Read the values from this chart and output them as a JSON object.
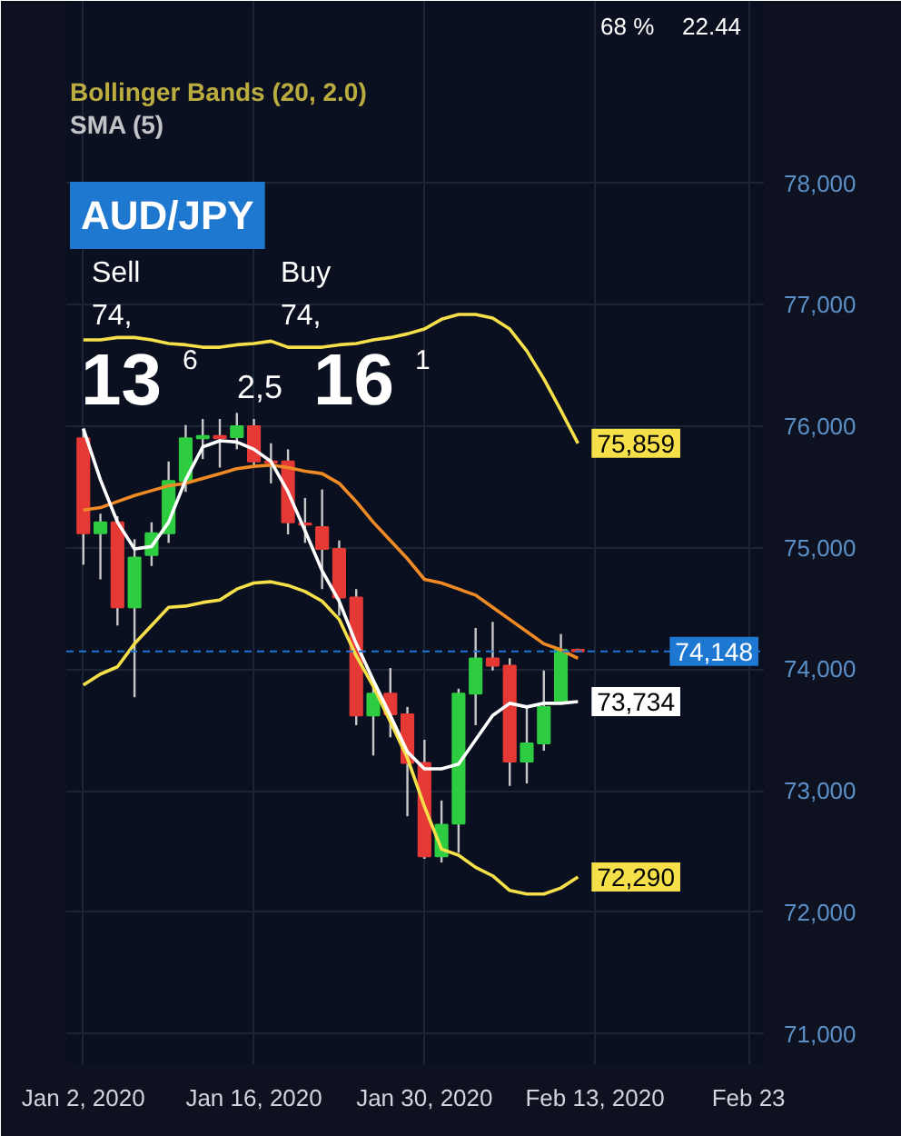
{
  "chart_data": {
    "type": "candlestick",
    "title": "AUD/JPY",
    "categories": [
      "Jan 2, 2020",
      null,
      null,
      null,
      null,
      null,
      null,
      null,
      null,
      null,
      "Jan 16, 2020",
      null,
      null,
      null,
      null,
      null,
      null,
      null,
      null,
      null,
      "Jan 30, 2020",
      null,
      null,
      null,
      null,
      null,
      null,
      null,
      null,
      null,
      "Feb 13, 2020",
      null,
      null,
      null,
      null,
      null,
      null,
      null,
      null,
      "Feb 23"
    ],
    "ohlc": [
      [
        75900,
        75980,
        74860,
        75120
      ],
      [
        75120,
        75280,
        74740,
        75210
      ],
      [
        75210,
        75260,
        74360,
        74510
      ],
      [
        74510,
        75070,
        73770,
        74920
      ],
      [
        74940,
        75210,
        74850,
        75120
      ],
      [
        75120,
        75710,
        75040,
        75550
      ],
      [
        75550,
        76010,
        75460,
        75900
      ],
      [
        75900,
        76060,
        75730,
        75920
      ],
      [
        75920,
        76060,
        75660,
        75900
      ],
      [
        75910,
        76110,
        75810,
        76000
      ],
      [
        76000,
        76060,
        75680,
        75710
      ],
      [
        75710,
        75860,
        75530,
        75700
      ],
      [
        75710,
        75810,
        75110,
        75210
      ],
      [
        75200,
        75410,
        75040,
        75190
      ],
      [
        75170,
        75480,
        74660,
        74990
      ],
      [
        74990,
        75060,
        74440,
        74590
      ],
      [
        74590,
        74660,
        73540,
        73620
      ],
      [
        73620,
        73860,
        73290,
        73800
      ],
      [
        73800,
        74010,
        73440,
        73630
      ],
      [
        73630,
        73690,
        72790,
        73230
      ],
      [
        73230,
        73420,
        72440,
        72460
      ],
      [
        72460,
        72920,
        72410,
        72720
      ],
      [
        72730,
        73840,
        72490,
        73800
      ],
      [
        73800,
        74340,
        73540,
        74090
      ],
      [
        74090,
        74390,
        73990,
        74030
      ],
      [
        74030,
        74090,
        73040,
        73240
      ],
      [
        73240,
        73690,
        73060,
        73390
      ],
      [
        73390,
        73990,
        73330,
        73690
      ],
      [
        73720,
        74290,
        73720,
        74160
      ],
      [
        74160,
        74170,
        74140,
        74148
      ],
      null,
      null,
      null,
      null,
      null,
      null,
      null,
      null,
      null,
      null
    ],
    "colors": [
      "#e53935",
      "#2ecc40",
      "#e53935",
      "#2ecc40",
      "#2ecc40",
      "#2ecc40",
      "#2ecc40",
      "#2ecc40",
      "#e53935",
      "#2ecc40",
      "#e53935",
      "#e53935",
      "#e53935",
      "#e53935",
      "#e53935",
      "#e53935",
      "#e53935",
      "#2ecc40",
      "#e53935",
      "#e53935",
      "#e53935",
      "#2ecc40",
      "#2ecc40",
      "#2ecc40",
      "#e53935",
      "#e53935",
      "#2ecc40",
      "#2ecc40",
      "#2ecc40",
      "#e53935",
      null,
      null,
      null,
      null,
      null,
      null,
      null,
      null,
      null,
      null
    ],
    "series": [
      {
        "name": "Bollinger Bands (20, 2.0)",
        "type": "line",
        "color": "#f5e04a",
        "values": [
          76710,
          76710,
          76730,
          76730,
          76710,
          76680,
          76670,
          76650,
          76650,
          76670,
          76680,
          76700,
          76650,
          76650,
          76650,
          76670,
          76680,
          76710,
          76730,
          76760,
          76800,
          76880,
          76920,
          76920,
          76890,
          76800,
          76620,
          76390,
          76130,
          75859,
          null,
          null,
          null,
          null,
          null,
          null,
          null,
          null,
          null,
          null
        ],
        "value_labels": [
          null,
          null,
          null,
          null,
          null,
          null,
          null,
          null,
          null,
          null,
          null,
          null,
          null,
          null,
          null,
          null,
          null,
          null,
          null,
          null,
          null,
          null,
          null,
          null,
          null,
          null,
          null,
          null,
          null,
          "75,859",
          null,
          null,
          null,
          null,
          null,
          null,
          null,
          null,
          null,
          null
        ]
      },
      {
        "type": "line",
        "color": "#f08a24",
        "values": [
          75310,
          75330,
          75380,
          75430,
          75470,
          75510,
          75530,
          75570,
          75610,
          75650,
          75670,
          75680,
          75660,
          75630,
          75610,
          75530,
          75380,
          75210,
          75060,
          74910,
          74740,
          74710,
          74660,
          74610,
          74510,
          74410,
          74310,
          74210,
          74160,
          74090,
          null,
          null,
          null,
          null,
          null,
          null,
          null,
          null,
          null,
          null
        ]
      },
      {
        "type": "line",
        "color": "#f5e04a",
        "values": [
          73870,
          73960,
          74020,
          74210,
          74360,
          74510,
          74520,
          74550,
          74570,
          74660,
          74710,
          74720,
          74690,
          74640,
          74560,
          74410,
          74110,
          73860,
          73570,
          73270,
          72870,
          72520,
          72470,
          72370,
          72300,
          72180,
          72150,
          72150,
          72200,
          72290,
          null,
          null,
          null,
          null,
          null,
          null,
          null,
          null,
          null,
          null
        ],
        "value_labels": [
          null,
          null,
          null,
          null,
          null,
          null,
          null,
          null,
          null,
          null,
          null,
          null,
          null,
          null,
          null,
          null,
          null,
          null,
          null,
          null,
          null,
          null,
          null,
          null,
          null,
          null,
          null,
          null,
          null,
          "72,290",
          null,
          null,
          null,
          null,
          null,
          null,
          null,
          null,
          null,
          null
        ]
      },
      {
        "name": "SMA (5)",
        "type": "line",
        "color": "#ffffff",
        "values": [
          75980,
          75560,
          75210,
          74990,
          75010,
          75210,
          75560,
          75830,
          75880,
          75870,
          75810,
          75710,
          75460,
          75140,
          74810,
          74560,
          74210,
          73910,
          73620,
          73320,
          73180,
          73180,
          73220,
          73420,
          73620,
          73720,
          73690,
          73720,
          73720,
          73734,
          null,
          null,
          null,
          null,
          null,
          null,
          null,
          null,
          null,
          null
        ],
        "value_labels": [
          null,
          null,
          null,
          null,
          null,
          null,
          null,
          null,
          null,
          null,
          null,
          null,
          null,
          null,
          null,
          null,
          null,
          null,
          null,
          null,
          null,
          null,
          null,
          null,
          null,
          null,
          null,
          null,
          null,
          "73,734",
          null,
          null,
          null,
          null,
          null,
          null,
          null,
          null,
          null,
          null
        ]
      }
    ],
    "ylim": [
      70750,
      79500
    ],
    "yticks": [
      {
        "value": 71000,
        "label": "71,000"
      },
      {
        "value": 72000,
        "label": "72,000"
      },
      {
        "value": 73000,
        "label": "73,000"
      },
      {
        "value": 74000,
        "label": "74,000"
      },
      {
        "value": 75000,
        "label": "75,000"
      },
      {
        "value": 76000,
        "label": "76,000"
      },
      {
        "value": 77000,
        "label": "77,000"
      },
      {
        "value": 78000,
        "label": "78,000"
      }
    ],
    "grid": true,
    "legend": "top left",
    "ref_lines": [
      {
        "axis": "y",
        "value": 74148,
        "label": "74,148",
        "color": "#1e78d2",
        "line_style": "dashed"
      }
    ],
    "annotations": [
      "68 %",
      "22.44",
      "Sell",
      "74,",
      "13",
      "6",
      "Buy",
      "74,",
      "16",
      "1",
      "2,5"
    ]
  }
}
